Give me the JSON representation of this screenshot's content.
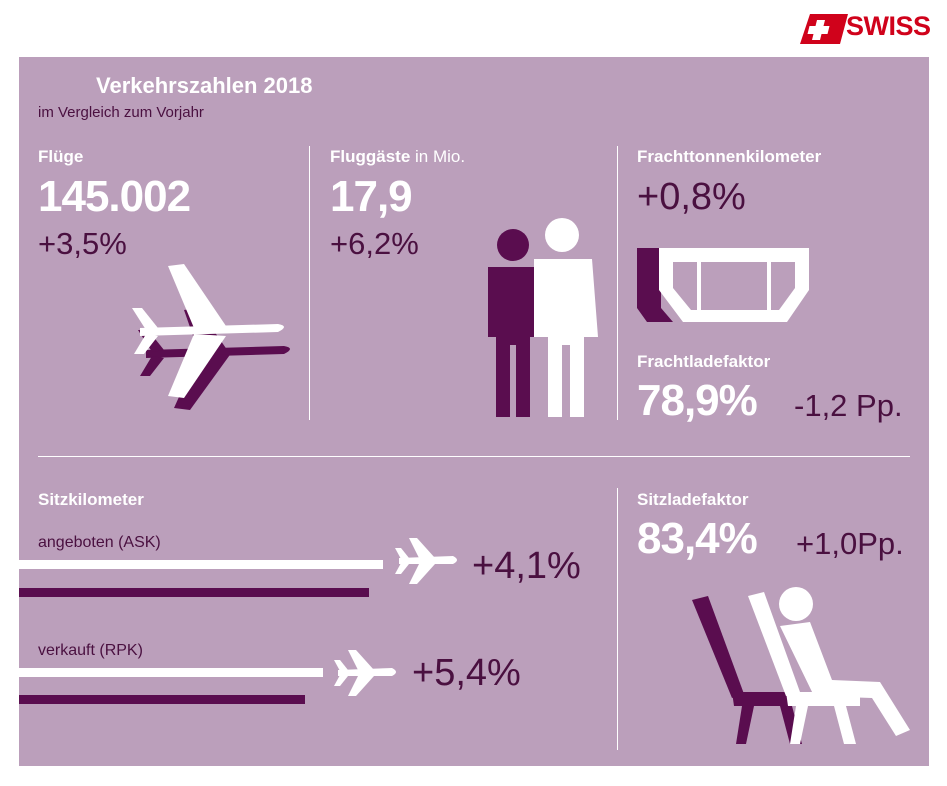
{
  "brand": {
    "name": "SWISS",
    "color": "#d0021b"
  },
  "header": {
    "title": "Verkehrszahlen 2018",
    "subtitle": "im Vergleich zum Vorjahr"
  },
  "colors": {
    "background": "#bb9fbb",
    "dark_purple": "#5a0d4f",
    "white": "#ffffff"
  },
  "flights": {
    "label": "Flüge",
    "value": "145.002",
    "change": "+3,5%",
    "icon": "airplane-icon"
  },
  "passengers": {
    "label": "Fluggäste",
    "unit": "in Mio.",
    "value": "17,9",
    "change": "+6,2%",
    "icon": "passengers-icon"
  },
  "cargo_tkm": {
    "label": "Frachttonnenkilometer",
    "change": "+0,8%",
    "icon": "cargo-container-icon"
  },
  "cargo_load_factor": {
    "label": "Frachtladefaktor",
    "value": "78,9%",
    "change": "-1,2 Pp."
  },
  "seat_km": {
    "label": "Sitzkilometer",
    "offered": {
      "label": "angeboten (ASK)",
      "change": "+4,1%"
    },
    "sold": {
      "label": "verkauft (RPK)",
      "change": "+5,4%"
    }
  },
  "seat_load_factor": {
    "label": "Sitzladefaktor",
    "value": "83,4%",
    "change": "+1,0Pp.",
    "icon": "seated-passenger-icon"
  }
}
